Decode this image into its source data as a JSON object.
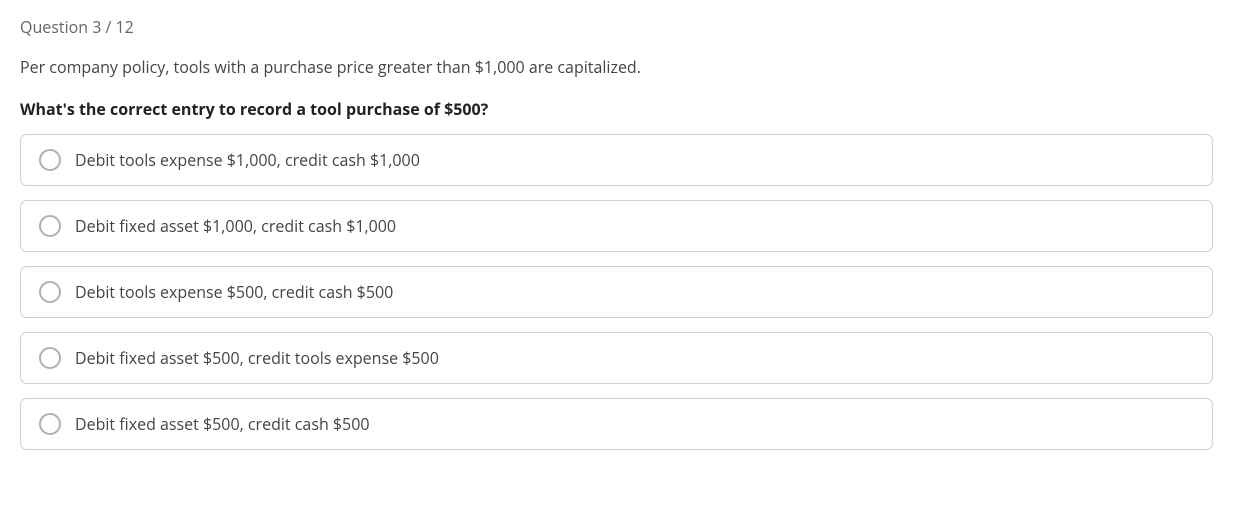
{
  "question": {
    "header": "Question 3 / 12",
    "context": "Per company policy, tools with a purchase price greater than $1,000 are capitalized.",
    "prompt": "What's the correct entry to record a tool purchase of $500?",
    "options": [
      "Debit tools expense $1,000, credit cash $1,000",
      "Debit fixed asset $1,000, credit cash $1,000",
      "Debit tools expense $500, credit cash $500",
      "Debit fixed asset $500, credit tools expense $500",
      "Debit fixed asset $500, credit cash $500"
    ]
  },
  "styles": {
    "background_color": "#ffffff",
    "border_color": "#d0d0d0",
    "radio_border_color": "#b0b0b0",
    "text_color": "#444444",
    "header_color": "#666666",
    "prompt_color": "#222222",
    "border_radius": 7,
    "option_gap": 14,
    "font_size": 16
  }
}
